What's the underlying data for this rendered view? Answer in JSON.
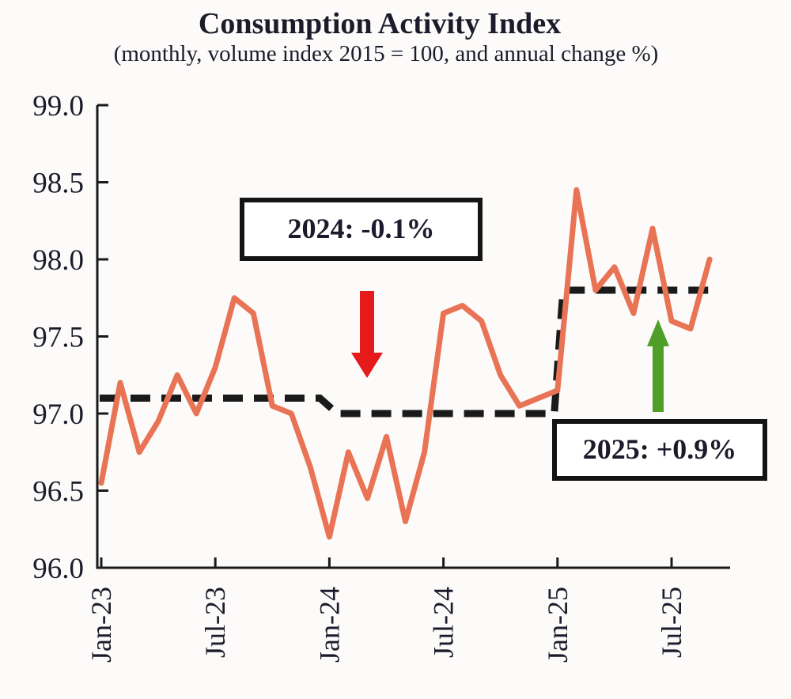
{
  "title": "Consumption Activity Index",
  "subtitle": "(monthly, volume index 2015 = 100, and annual change %)",
  "annotations": {
    "box_2024": {
      "label": "2024: -0.1%",
      "arrow": "down"
    },
    "box_2025": {
      "label": "2025: +0.9%",
      "arrow": "up"
    }
  },
  "colors": {
    "monthly_line": "#E97355",
    "average_line": "#1A1A1A",
    "axis": "#1A1A1A",
    "text": "#1B1B2B",
    "red_arrow": "#E6191B",
    "green_arrow": "#4F9E27",
    "box_border": "#141414",
    "background": "#FCFBF9"
  },
  "chart_data": {
    "type": "line",
    "title": "Consumption Activity Index",
    "subtitle": "(monthly, volume index 2015 = 100, and annual change %)",
    "x": [
      "Jan-23",
      "Feb-23",
      "Mar-23",
      "Apr-23",
      "May-23",
      "Jun-23",
      "Jul-23",
      "Aug-23",
      "Sep-23",
      "Oct-23",
      "Nov-23",
      "Dec-23",
      "Jan-24",
      "Feb-24",
      "Mar-24",
      "Apr-24",
      "May-24",
      "Jun-24",
      "Jul-24",
      "Aug-24",
      "Sep-24",
      "Oct-24",
      "Nov-24",
      "Dec-24",
      "Jan-25",
      "Feb-25",
      "Mar-25",
      "Apr-25",
      "May-25",
      "Jun-25",
      "Jul-25",
      "Aug-25",
      "Sep-25"
    ],
    "series": [
      {
        "name": "Consumption Activity Index, monthly volume index",
        "values": [
          96.55,
          97.2,
          96.75,
          96.95,
          97.25,
          97.0,
          97.3,
          97.75,
          97.65,
          97.05,
          97.0,
          96.65,
          96.2,
          96.75,
          96.45,
          96.85,
          96.3,
          96.75,
          97.65,
          97.7,
          97.6,
          97.25,
          97.05,
          97.1,
          97.15,
          98.45,
          97.8,
          97.95,
          97.65,
          98.2,
          97.6,
          97.55,
          98.0
        ]
      }
    ],
    "annual_averages": [
      {
        "year": "2023",
        "value": 97.1,
        "span": [
          0,
          11
        ],
        "annual_change_pct": null
      },
      {
        "year": "2024",
        "value": 97.0,
        "span": [
          12,
          23
        ],
        "annual_change_pct": -0.1
      },
      {
        "year": "2025",
        "value": 97.8,
        "span": [
          24,
          32
        ],
        "annual_change_pct": 0.9
      }
    ],
    "x_tick_labels": [
      "Jan-23",
      "Jul-23",
      "Jan-24",
      "Jul-24",
      "Jan-25",
      "Jul-25"
    ],
    "y_ticks": [
      96.0,
      96.5,
      97.0,
      97.5,
      98.0,
      98.5,
      99.0
    ],
    "ylim": [
      96.0,
      99.0
    ],
    "grid": "off",
    "legend": "none",
    "average_line_style": "dashed-step"
  }
}
